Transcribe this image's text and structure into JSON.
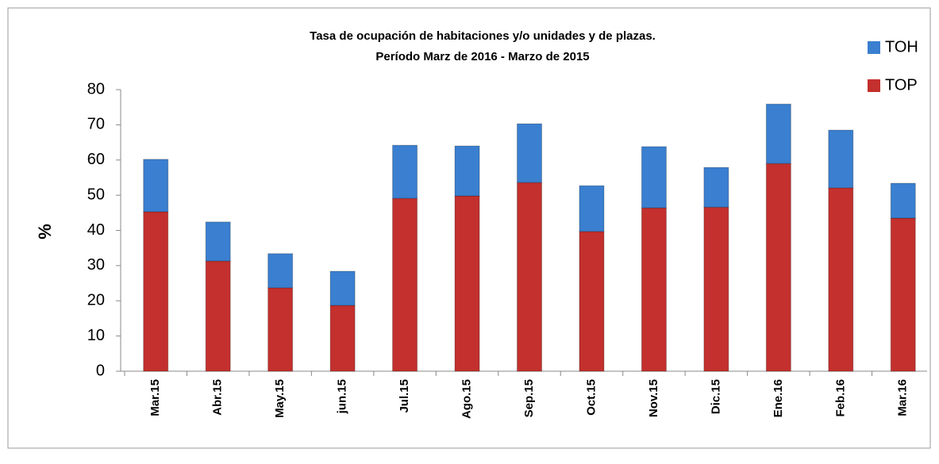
{
  "chart_data": {
    "type": "stacked_bar",
    "title": "Tasa  de ocupación de habitaciones y/o unidades y de plazas.",
    "subtitle": "Período Marz de 2016 - Marzo de 2015",
    "y_label": "%",
    "categories": [
      "Mar.15",
      "Abr.15",
      "May.15",
      "jun.15",
      "Jul.15",
      "Ago.15",
      "Sep.15",
      "Oct.15",
      "Nov.15",
      "Dic.15",
      "Ene.16",
      "Feb.16",
      "Mar.16"
    ],
    "series": [
      {
        "name": "TOH",
        "color": "#3a7fd0",
        "values": [
          14.9,
          11.1,
          9.7,
          9.7,
          15.1,
          14.2,
          16.7,
          13,
          17.4,
          11.3,
          16.9,
          16.4,
          9.9
        ]
      },
      {
        "name": "TOP",
        "color": "#c3302d",
        "values": [
          45.3,
          31.3,
          23.7,
          18.7,
          49.1,
          49.8,
          53.6,
          39.7,
          46.4,
          46.6,
          59,
          52.1,
          43.5
        ]
      }
    ],
    "ylim": [
      0,
      80
    ],
    "yticks": [
      0,
      10,
      20,
      30,
      40,
      50,
      60,
      70,
      80
    ],
    "legend": "top-right"
  }
}
